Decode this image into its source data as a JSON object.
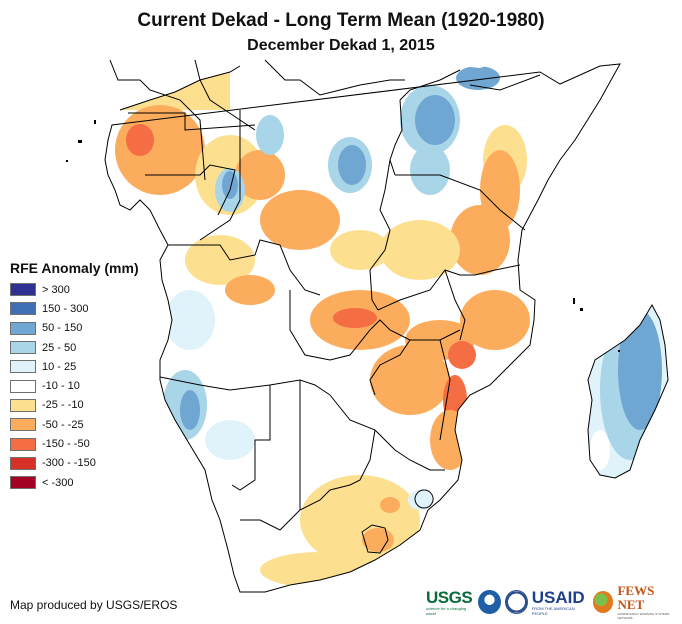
{
  "title": "Current Dekad - Long Term Mean (1920-1980)",
  "subtitle": "December Dekad 1, 2015",
  "legend": {
    "title": "RFE Anomaly (mm)",
    "items": [
      {
        "label": "> 300",
        "color": "#2e3192"
      },
      {
        "label": "150 - 300",
        "color": "#3f6fb5"
      },
      {
        "label": "50 - 150",
        "color": "#6fa6d2"
      },
      {
        "label": "25 - 50",
        "color": "#a8d5e8"
      },
      {
        "label": "10 - 25",
        "color": "#e1f3fa"
      },
      {
        "label": "-10 - 10",
        "color": "#ffffff"
      },
      {
        "label": "-25 - -10",
        "color": "#fde08f"
      },
      {
        "label": "-50 - -25",
        "color": "#fbad5d"
      },
      {
        "label": "-150 - -50",
        "color": "#f46d43"
      },
      {
        "label": "-300 - -150",
        "color": "#d73027"
      },
      {
        "label": "< -300",
        "color": "#a50026"
      }
    ]
  },
  "credit": "Map produced by USGS/EROS",
  "logos": {
    "usgs": "USGS",
    "usgs_tagline": "science for a changing world",
    "noaa": "NOAA",
    "usaid": "USAID",
    "usaid_tagline": "FROM THE AMERICAN PEOPLE",
    "fews": "FEWS NET",
    "fews_tagline": "FAMINE EARLY WARNING SYSTEMS NETWORK"
  }
}
